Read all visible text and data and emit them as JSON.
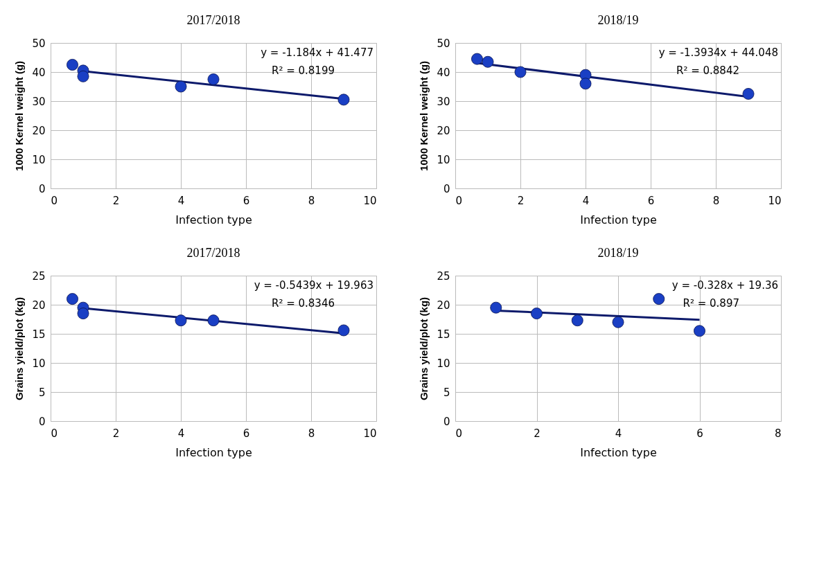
{
  "chart_data": [
    {
      "type": "scatter",
      "title": "2017/2018",
      "xlabel": "Infection type",
      "ylabel": "1000 Kernel weight (g)",
      "xlim": [
        0,
        10
      ],
      "xticks": [
        0,
        2,
        4,
        6,
        8,
        10
      ],
      "ylim": [
        0,
        50
      ],
      "yticks": [
        0,
        10,
        20,
        30,
        40,
        50
      ],
      "grid": true,
      "annotations": [
        "y = -1.184x + 41.477",
        "R² = 0.8199"
      ],
      "series": [
        {
          "marker": "circle",
          "color": "#1a3fc4",
          "x": [
            0.67,
            1,
            1,
            4,
            5,
            9
          ],
          "values": [
            42.5,
            40.5,
            38.5,
            35,
            37.5,
            30.5
          ]
        },
        {
          "type": "line",
          "color": "#0d1a6b",
          "x": [
            1,
            9
          ],
          "values": [
            40.3,
            30.8
          ]
        }
      ]
    },
    {
      "type": "scatter",
      "title": "2018/19",
      "xlabel": "Infection type",
      "ylabel": "1000 Kernel weight (g)",
      "xlim": [
        0,
        10
      ],
      "xticks": [
        0,
        2,
        4,
        6,
        8,
        10
      ],
      "ylim": [
        0,
        50
      ],
      "yticks": [
        0,
        10,
        20,
        30,
        40,
        50
      ],
      "grid": true,
      "annotations": [
        "y = -1.3934x + 44.048",
        "R² = 0.8842"
      ],
      "series": [
        {
          "marker": "circle",
          "color": "#1a3fc4",
          "x": [
            0.67,
            1,
            2,
            4,
            4,
            9
          ],
          "values": [
            44.5,
            43.5,
            40,
            39,
            36,
            32.5
          ]
        },
        {
          "type": "line",
          "color": "#0d1a6b",
          "x": [
            0.67,
            9
          ],
          "values": [
            43.1,
            31.5
          ]
        }
      ]
    },
    {
      "type": "scatter",
      "title": "2017/2018",
      "xlabel": "Infection type",
      "ylabel": "Grains yield/plot (kg)",
      "xlim": [
        0,
        10
      ],
      "xticks": [
        0,
        2,
        4,
        6,
        8,
        10
      ],
      "ylim": [
        0,
        25
      ],
      "yticks": [
        0,
        5,
        10,
        15,
        20,
        25
      ],
      "grid": true,
      "annotations": [
        "y = -0.5439x + 19.963",
        "R² = 0.8346"
      ],
      "series": [
        {
          "marker": "circle",
          "color": "#1a3fc4",
          "x": [
            0.67,
            1,
            1,
            4,
            5,
            9
          ],
          "values": [
            21,
            19.5,
            18.5,
            17.3,
            17.3,
            15.6
          ]
        },
        {
          "type": "line",
          "color": "#0d1a6b",
          "x": [
            1,
            9
          ],
          "values": [
            19.4,
            15.1
          ]
        }
      ]
    },
    {
      "type": "scatter",
      "title": "2018/19",
      "xlabel": "Infection type",
      "ylabel": "Grains yield/plot (kg)",
      "xlim": [
        0,
        8
      ],
      "xticks": [
        0,
        2,
        4,
        6,
        8
      ],
      "ylim": [
        0,
        25
      ],
      "yticks": [
        0,
        5,
        10,
        15,
        20,
        25
      ],
      "grid": true,
      "annotations": [
        "y = -0.328x + 19.36",
        "R² = 0.897"
      ],
      "series": [
        {
          "marker": "circle",
          "color": "#1a3fc4",
          "x": [
            1,
            2,
            3,
            4,
            5,
            6
          ],
          "values": [
            19.5,
            18.5,
            17.3,
            17,
            21,
            15.5
          ]
        },
        {
          "type": "line",
          "color": "#0d1a6b",
          "x": [
            1,
            6
          ],
          "values": [
            19,
            17.4
          ]
        }
      ]
    }
  ]
}
